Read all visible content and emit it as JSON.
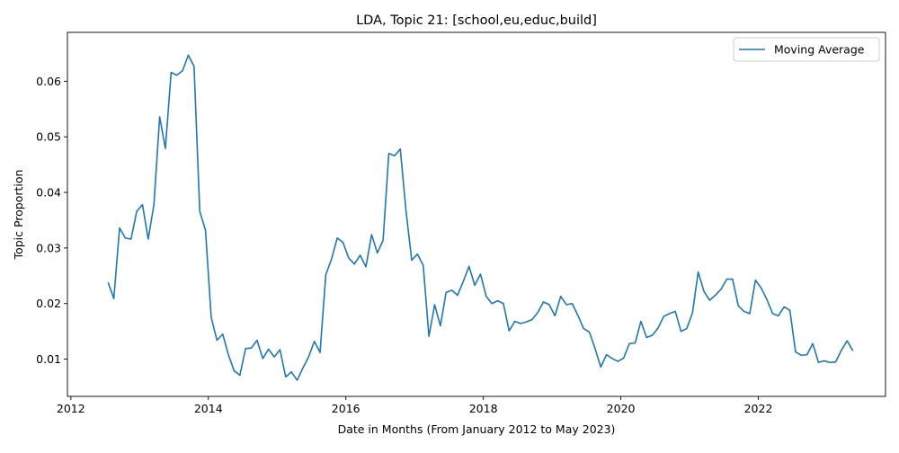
{
  "chart_data": {
    "type": "line",
    "title": "LDA, Topic 21: [school,eu,educ,build]",
    "xlabel": "Date in Months (From January 2012 to May 2023)",
    "ylabel": "Topic Proportion",
    "xlim": [
      2011.95,
      2023.85
    ],
    "ylim": [
      0.0033,
      0.0688
    ],
    "x_ticks": [
      {
        "value": 2012,
        "label": "2012"
      },
      {
        "value": 2014,
        "label": "2014"
      },
      {
        "value": 2016,
        "label": "2016"
      },
      {
        "value": 2018,
        "label": "2018"
      },
      {
        "value": 2020,
        "label": "2020"
      },
      {
        "value": 2022,
        "label": "2022"
      }
    ],
    "y_ticks": [
      {
        "value": 0.01,
        "label": "0.01"
      },
      {
        "value": 0.02,
        "label": "0.02"
      },
      {
        "value": 0.03,
        "label": "0.03"
      },
      {
        "value": 0.04,
        "label": "0.04"
      },
      {
        "value": 0.05,
        "label": "0.05"
      },
      {
        "value": 0.06,
        "label": "0.06"
      }
    ],
    "grid": false,
    "legend": {
      "placement": "top-right"
    },
    "series": [
      {
        "name": "Moving Average",
        "color": "#1f77b4",
        "x_start": "2012-07",
        "x_step": "1 month",
        "values": [
          0.0238,
          0.0209,
          0.0336,
          0.0318,
          0.0316,
          0.0366,
          0.0378,
          0.0316,
          0.0378,
          0.0536,
          0.0479,
          0.0616,
          0.0611,
          0.0619,
          0.0647,
          0.0627,
          0.0366,
          0.0332,
          0.0175,
          0.0134,
          0.0145,
          0.0108,
          0.0079,
          0.0071,
          0.0119,
          0.012,
          0.0134,
          0.0101,
          0.0118,
          0.0104,
          0.0117,
          0.0068,
          0.0077,
          0.0062,
          0.0084,
          0.0104,
          0.0132,
          0.0112,
          0.0252,
          0.028,
          0.0318,
          0.031,
          0.0282,
          0.0271,
          0.0287,
          0.0266,
          0.0324,
          0.0291,
          0.0314,
          0.047,
          0.0466,
          0.0478,
          0.0367,
          0.0278,
          0.0289,
          0.0269,
          0.0141,
          0.0198,
          0.016,
          0.022,
          0.0224,
          0.0215,
          0.024,
          0.0267,
          0.0233,
          0.0253,
          0.0213,
          0.02,
          0.0205,
          0.02,
          0.0151,
          0.0168,
          0.0164,
          0.0167,
          0.0171,
          0.0184,
          0.0203,
          0.0198,
          0.0178,
          0.0213,
          0.0198,
          0.02,
          0.0179,
          0.0155,
          0.0149,
          0.0119,
          0.0086,
          0.0108,
          0.0101,
          0.0096,
          0.0102,
          0.0128,
          0.0129,
          0.0168,
          0.0139,
          0.0143,
          0.0156,
          0.0177,
          0.0182,
          0.0186,
          0.015,
          0.0155,
          0.0183,
          0.0257,
          0.0222,
          0.0206,
          0.0215,
          0.0226,
          0.0244,
          0.0244,
          0.0196,
          0.0186,
          0.0182,
          0.0242,
          0.0228,
          0.0207,
          0.0182,
          0.0178,
          0.0194,
          0.0188,
          0.0113,
          0.0107,
          0.0108,
          0.0128,
          0.0094,
          0.0097,
          0.0094,
          0.0095,
          0.0116,
          0.0133,
          0.0115
        ]
      }
    ]
  }
}
